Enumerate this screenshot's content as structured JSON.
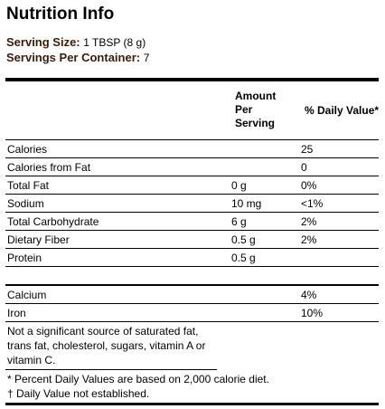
{
  "header": {
    "title": "Nutrition Info"
  },
  "serving": {
    "size_label": "Serving Size:",
    "size_value": "1 TBSP (8 g)",
    "container_label": "Servings Per Container:",
    "container_value": "7"
  },
  "table": {
    "columns": {
      "amount": "Amount Per Serving",
      "dv": "% Daily Value*"
    },
    "groups": [
      [
        {
          "name": "Calories",
          "dv": "25"
        },
        {
          "name": "Calories from Fat",
          "dv": "0"
        },
        {
          "name": "Total Fat",
          "amount": "0 g",
          "dv": "0%"
        },
        {
          "name": "Sodium",
          "amount": "10 mg",
          "dv": "<1%"
        },
        {
          "name": "Total Carbohydrate",
          "amount": "6 g",
          "dv": "2%"
        },
        {
          "name": "Dietary Fiber",
          "amount": "0.5 g",
          "dv": "2%"
        },
        {
          "name": "Protein",
          "amount": "0.5 g"
        }
      ],
      [
        {
          "name": "Calcium",
          "dv": "4%"
        },
        {
          "name": "Iron",
          "dv": "10%"
        }
      ]
    ]
  },
  "footnotes": {
    "note": "Not a significant source of saturated fat, trans fat, cholesterol, sugars, vitamin A or vitamin C.",
    "lines": [
      "* Percent Daily Values are based on 2,000 calorie diet.",
      "† Daily Value not established."
    ]
  }
}
